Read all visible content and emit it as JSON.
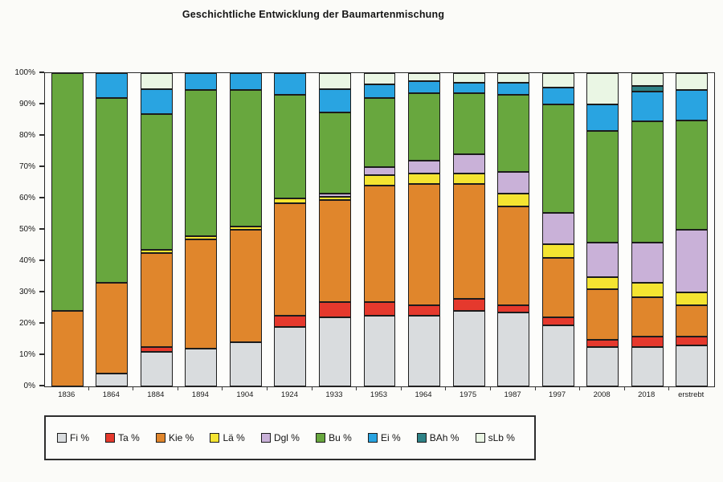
{
  "title": "Geschichtliche Entwicklung der Baumartenmischung",
  "chart_data": {
    "type": "bar",
    "stacked": true,
    "title": "Geschichtliche Entwicklung der Baumartenmischung",
    "categories": [
      "1836",
      "1864",
      "1884",
      "1894",
      "1904",
      "1924",
      "1933",
      "1953",
      "1964",
      "1975",
      "1987",
      "1997",
      "2008",
      "2018",
      "erstrebt"
    ],
    "series": [
      {
        "name": "Fi %",
        "color": "#d9dcde",
        "values": [
          0,
          4,
          11,
          12,
          14,
          19,
          22,
          22.5,
          22.5,
          24,
          23.5,
          19.5,
          12.5,
          12.5,
          13
        ]
      },
      {
        "name": "Ta %",
        "color": "#e5392d",
        "values": [
          0,
          0,
          1.5,
          0,
          0,
          3.5,
          5,
          4.5,
          3.5,
          4,
          2.5,
          2.5,
          2.5,
          3.5,
          3
        ]
      },
      {
        "name": "Kie %",
        "color": "#e0862c",
        "values": [
          24,
          29,
          30,
          35,
          36,
          36,
          32.5,
          37,
          38.5,
          36.5,
          31.5,
          19,
          16,
          12.5,
          10
        ]
      },
      {
        "name": "Lä %",
        "color": "#f4e431",
        "values": [
          0,
          0,
          1,
          1,
          1,
          1.5,
          1,
          3.5,
          3.5,
          3.5,
          4,
          4.5,
          4,
          4.5,
          4
        ]
      },
      {
        "name": "Dgl %",
        "color": "#c9b1d8",
        "values": [
          0,
          0,
          0,
          0,
          0,
          0,
          1,
          2.5,
          4,
          6,
          7,
          10,
          11,
          13,
          20
        ]
      },
      {
        "name": "Bu %",
        "color": "#68a73e",
        "values": [
          76,
          59,
          43.5,
          46.5,
          43.5,
          33,
          26,
          22,
          21.5,
          19.5,
          24.5,
          34.5,
          35.5,
          38.5,
          35
        ]
      },
      {
        "name": "Ei %",
        "color": "#29a4e1",
        "values": [
          0,
          8,
          8,
          5.5,
          5.5,
          7,
          7.5,
          4.5,
          4,
          3.5,
          4,
          5.5,
          8.5,
          9.5,
          9.5
        ]
      },
      {
        "name": "BAh %",
        "color": "#2e8286",
        "values": [
          0,
          0,
          0,
          0,
          0,
          0,
          0,
          0,
          0,
          0,
          0,
          0,
          0,
          2,
          0
        ]
      },
      {
        "name": "sLb %",
        "color": "#eaf6e4",
        "values": [
          0,
          0,
          5,
          0,
          0,
          0,
          5,
          3.5,
          2.5,
          3,
          3,
          4.5,
          10,
          4,
          5.5
        ]
      }
    ],
    "y_tick_labels": [
      "0%",
      "10%",
      "20%",
      "30%",
      "40%",
      "50%",
      "60%",
      "70%",
      "80%",
      "90%",
      "100%"
    ],
    "ylim": [
      0,
      100
    ],
    "grid": false,
    "legend_position": "bottom"
  }
}
